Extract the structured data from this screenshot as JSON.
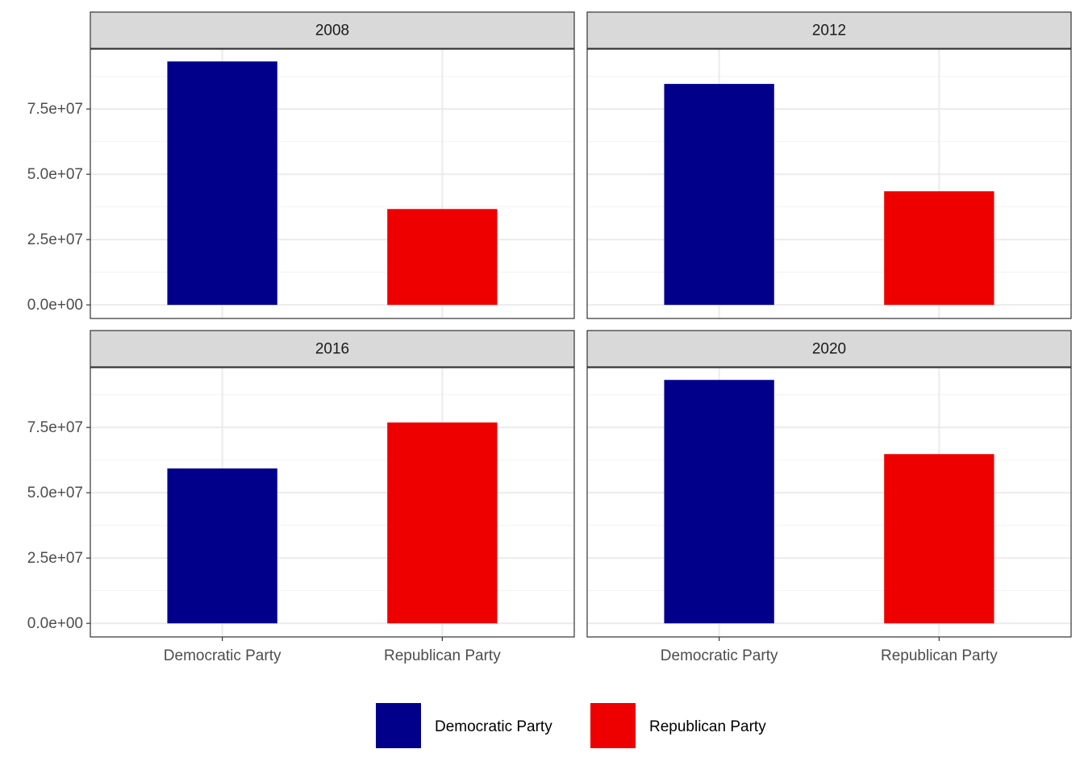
{
  "chart_data": {
    "type": "bar",
    "categories": [
      "Democratic Party",
      "Republican Party"
    ],
    "colors": [
      "#00008b",
      "#ee0000"
    ],
    "ylim": [
      -5200000,
      97900000
    ],
    "yticks": [
      {
        "value": 0,
        "label": "0.0e+00"
      },
      {
        "value": 25000000,
        "label": "2.5e+07"
      },
      {
        "value": 50000000,
        "label": "5.0e+07"
      },
      {
        "value": 75000000,
        "label": "7.5e+07"
      }
    ],
    "grid": true,
    "facets": [
      {
        "title": "2008",
        "values": [
          93200000,
          36700000
        ]
      },
      {
        "title": "2012",
        "values": [
          84600000,
          43500000
        ]
      },
      {
        "title": "2016",
        "values": [
          59300000,
          76900000
        ]
      },
      {
        "title": "2020",
        "values": [
          93200000,
          64800000
        ]
      }
    ],
    "legend": {
      "position": "bottom",
      "entries": [
        {
          "name": "Democratic Party",
          "color": "#00008b"
        },
        {
          "name": "Republican Party",
          "color": "#ee0000"
        }
      ]
    }
  }
}
